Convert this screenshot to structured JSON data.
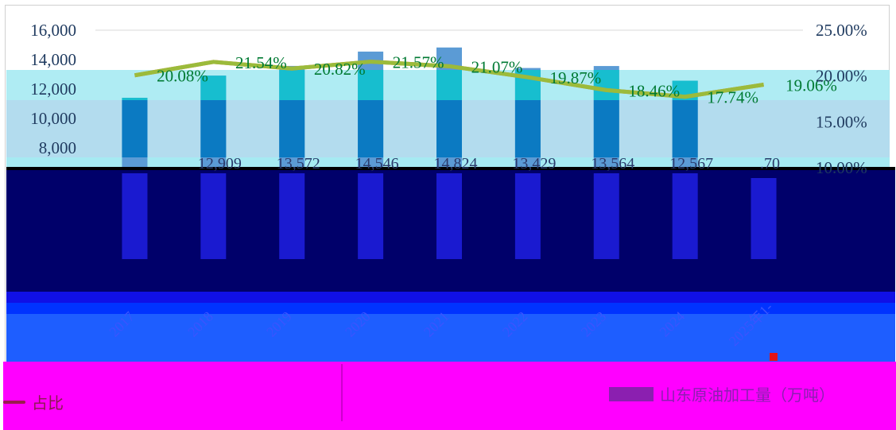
{
  "chart_data": {
    "type": "bar",
    "categories": [
      "2017",
      "2018",
      "2019",
      "2020",
      "2021",
      "2022",
      "2023",
      "2024",
      "2025年1-"
    ],
    "series": [
      {
        "name": "山东原油加工量（万吨）",
        "type": "bar",
        "axis": "left",
        "values": [
          11400,
          12909,
          13572,
          14546,
          14824,
          13429,
          13564,
          12567,
          null
        ]
      },
      {
        "type": "line",
        "axis": "right",
        "values": [
          20.08,
          21.54,
          20.82,
          21.57,
          21.07,
          19.87,
          18.46,
          17.74,
          19.06
        ]
      },
      {
        "name": "占比",
        "type": "line",
        "axis": "right",
        "values": [
          20.08,
          21.54,
          20.82,
          21.57,
          21.07,
          19.87,
          18.46,
          17.74,
          19.06
        ]
      }
    ],
    "data_labels": {
      "bars": [
        "",
        "12,909",
        "13,572",
        "14,546",
        "14,824",
        "13,429",
        "13,564",
        "12,567",
        ".70"
      ],
      "line": [
        "20.08%",
        "21.54%",
        "20.82%",
        "21.57%",
        "21.07%",
        "19.87%",
        "18.46%",
        "17.74%",
        "19.06%"
      ]
    },
    "y_left": {
      "ticks": [
        "16,000",
        "14,000",
        "12,000",
        "10,000",
        "8,000"
      ],
      "lim": [
        8000,
        16000
      ]
    },
    "y_right": {
      "ticks": [
        "25.00%",
        "20.00%",
        "15.00%",
        "10.00%"
      ],
      "lim": [
        10,
        25
      ]
    },
    "legend": {
      "items": [
        "占比",
        "山东原油加工量（万吨）"
      ],
      "placement": "bottom"
    },
    "grid": true,
    "colors": {
      "bar": "#5b9bd5",
      "bar_dark": "#0b7ac2",
      "line_orange": "#ed7d31",
      "line_green": "#9bbb3b",
      "label_green": "#007a33",
      "overlay_navy": "#00006a",
      "overlay_blue": "#0033ff",
      "overlay_cyan": "#a6eaf2",
      "overlay_magenta": "#ff00ff"
    }
  }
}
